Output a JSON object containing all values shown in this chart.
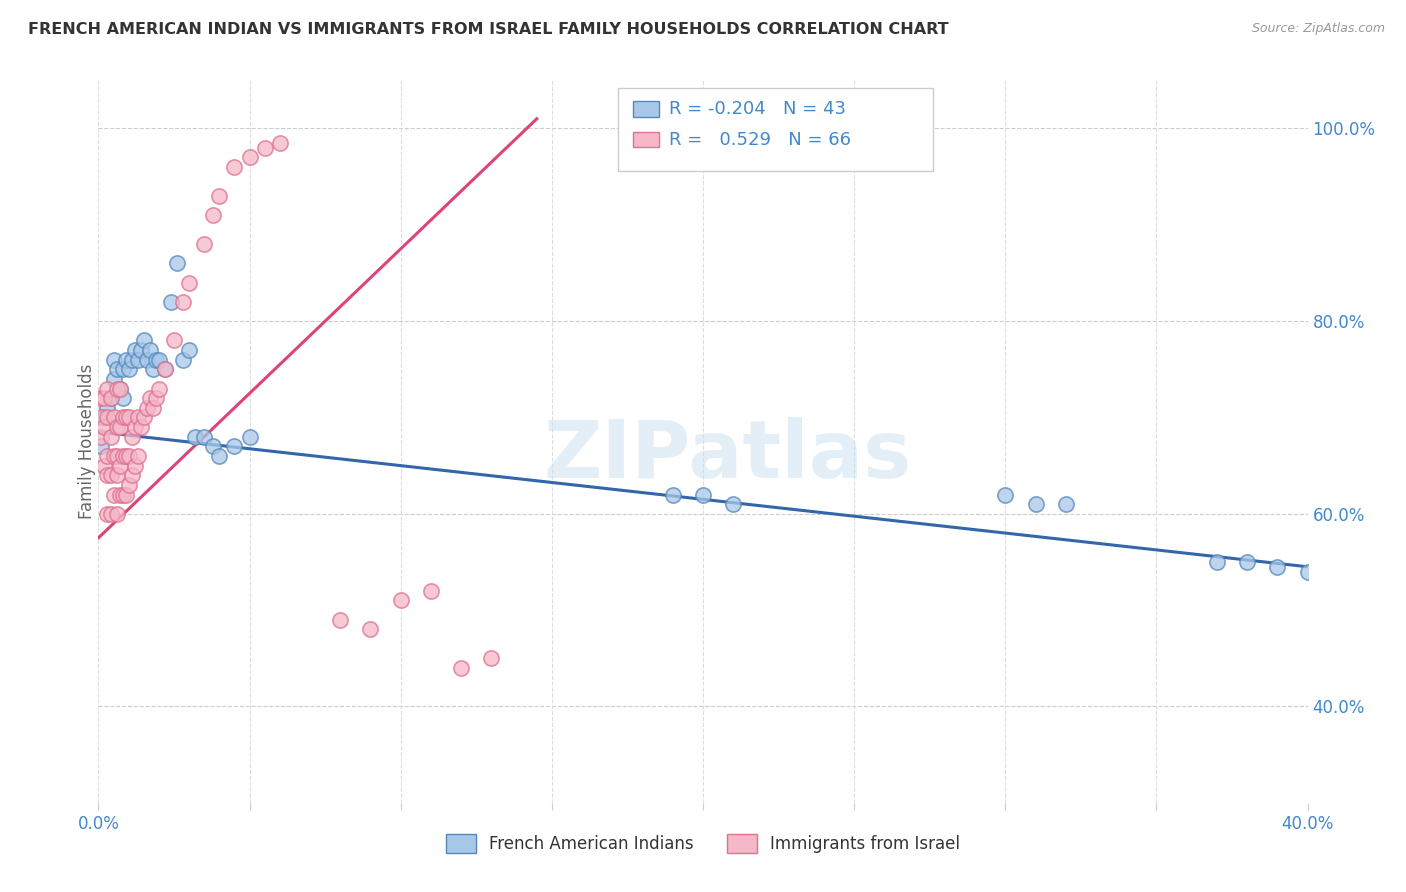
{
  "title": "FRENCH AMERICAN INDIAN VS IMMIGRANTS FROM ISRAEL FAMILY HOUSEHOLDS CORRELATION CHART",
  "source": "Source: ZipAtlas.com",
  "ylabel": "Family Households",
  "xlim": [
    0.0,
    0.4
  ],
  "ylim": [
    0.3,
    1.05
  ],
  "x_tick_positions": [
    0.0,
    0.05,
    0.1,
    0.15,
    0.2,
    0.25,
    0.3,
    0.35,
    0.4
  ],
  "x_tick_labels": [
    "0.0%",
    "",
    "",
    "",
    "",
    "",
    "",
    "",
    "40.0%"
  ],
  "y_ticks_right": [
    0.4,
    0.6,
    0.8,
    1.0
  ],
  "y_tick_labels_right": [
    "40.0%",
    "60.0%",
    "80.0%",
    "100.0%"
  ],
  "watermark": "ZIPatlas",
  "color_blue": "#a8c8e8",
  "color_blue_edge": "#5588bb",
  "color_blue_line": "#3366aa",
  "color_pink": "#f4b8c8",
  "color_pink_edge": "#e07090",
  "color_pink_line": "#dd4477",
  "blue_scatter_x": [
    0.001,
    0.002,
    0.003,
    0.004,
    0.005,
    0.005,
    0.006,
    0.007,
    0.008,
    0.008,
    0.009,
    0.01,
    0.011,
    0.012,
    0.013,
    0.014,
    0.015,
    0.016,
    0.017,
    0.018,
    0.019,
    0.02,
    0.022,
    0.024,
    0.026,
    0.028,
    0.03,
    0.032,
    0.035,
    0.038,
    0.04,
    0.045,
    0.05,
    0.19,
    0.2,
    0.21,
    0.3,
    0.31,
    0.32,
    0.37,
    0.38,
    0.39,
    0.4
  ],
  "blue_scatter_y": [
    0.67,
    0.7,
    0.71,
    0.72,
    0.74,
    0.76,
    0.75,
    0.73,
    0.72,
    0.75,
    0.76,
    0.75,
    0.76,
    0.77,
    0.76,
    0.77,
    0.78,
    0.76,
    0.77,
    0.75,
    0.76,
    0.76,
    0.75,
    0.82,
    0.86,
    0.76,
    0.77,
    0.68,
    0.68,
    0.67,
    0.66,
    0.67,
    0.68,
    0.62,
    0.62,
    0.61,
    0.62,
    0.61,
    0.61,
    0.55,
    0.55,
    0.545,
    0.54
  ],
  "pink_scatter_x": [
    0.001,
    0.001,
    0.001,
    0.002,
    0.002,
    0.002,
    0.003,
    0.003,
    0.003,
    0.003,
    0.003,
    0.004,
    0.004,
    0.004,
    0.004,
    0.005,
    0.005,
    0.005,
    0.006,
    0.006,
    0.006,
    0.006,
    0.006,
    0.007,
    0.007,
    0.007,
    0.007,
    0.008,
    0.008,
    0.008,
    0.009,
    0.009,
    0.009,
    0.01,
    0.01,
    0.01,
    0.011,
    0.011,
    0.012,
    0.012,
    0.013,
    0.013,
    0.014,
    0.015,
    0.016,
    0.017,
    0.018,
    0.019,
    0.02,
    0.022,
    0.025,
    0.028,
    0.03,
    0.035,
    0.038,
    0.04,
    0.045,
    0.05,
    0.055,
    0.06,
    0.08,
    0.09,
    0.1,
    0.11,
    0.12,
    0.13
  ],
  "pink_scatter_y": [
    0.68,
    0.7,
    0.72,
    0.65,
    0.69,
    0.72,
    0.6,
    0.64,
    0.66,
    0.7,
    0.73,
    0.6,
    0.64,
    0.68,
    0.72,
    0.62,
    0.66,
    0.7,
    0.6,
    0.64,
    0.66,
    0.69,
    0.73,
    0.62,
    0.65,
    0.69,
    0.73,
    0.62,
    0.66,
    0.7,
    0.62,
    0.66,
    0.7,
    0.63,
    0.66,
    0.7,
    0.64,
    0.68,
    0.65,
    0.69,
    0.66,
    0.7,
    0.69,
    0.7,
    0.71,
    0.72,
    0.71,
    0.72,
    0.73,
    0.75,
    0.78,
    0.82,
    0.84,
    0.88,
    0.91,
    0.93,
    0.96,
    0.97,
    0.98,
    0.985,
    0.49,
    0.48,
    0.51,
    0.52,
    0.44,
    0.45
  ]
}
